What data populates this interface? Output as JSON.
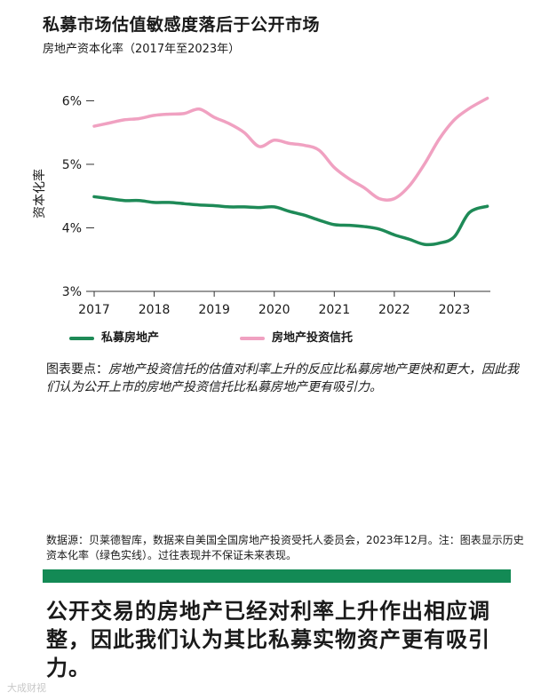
{
  "colors": {
    "private": "#1e8a57",
    "reit": "#f0a1c1",
    "axis": "#333333",
    "band": "#138a55",
    "grid": "#cccccc"
  },
  "header": {
    "title": "私募市场估值敏感度落后于公开市场",
    "subtitle": "房地产资本化率（2017年至2023年）"
  },
  "chart_data": {
    "type": "line",
    "ylabel": "资本化率",
    "xlabel": "",
    "xlim": [
      2017,
      2023.6
    ],
    "ylim": [
      3,
      6.3
    ],
    "x_ticks": [
      2017,
      2018,
      2019,
      2020,
      2021,
      2022,
      2023
    ],
    "x_tick_labels": [
      "2017",
      "2018",
      "2019",
      "2020",
      "2021",
      "2022",
      "2023"
    ],
    "y_ticks": [
      3,
      4,
      5,
      6
    ],
    "y_tick_labels": [
      "3%",
      "4%",
      "5%",
      "6%"
    ],
    "series": [
      {
        "name": "私募房地产",
        "color": "#1e8a57",
        "x": [
          2017,
          2017.25,
          2017.5,
          2017.75,
          2018,
          2018.25,
          2018.5,
          2018.75,
          2019,
          2019.25,
          2019.5,
          2019.75,
          2020,
          2020.25,
          2020.5,
          2020.75,
          2021,
          2021.25,
          2021.5,
          2021.75,
          2022,
          2022.25,
          2022.5,
          2022.75,
          2023,
          2023.25,
          2023.55
        ],
        "values": [
          4.49,
          4.46,
          4.43,
          4.43,
          4.4,
          4.4,
          4.38,
          4.36,
          4.35,
          4.33,
          4.33,
          4.32,
          4.33,
          4.26,
          4.2,
          4.12,
          4.05,
          4.04,
          4.02,
          3.98,
          3.89,
          3.82,
          3.74,
          3.76,
          3.86,
          4.24,
          4.34
        ]
      },
      {
        "name": "房地产投资信托",
        "color": "#f0a1c1",
        "x": [
          2017,
          2017.25,
          2017.5,
          2017.75,
          2018,
          2018.25,
          2018.5,
          2018.75,
          2019,
          2019.25,
          2019.5,
          2019.75,
          2020,
          2020.25,
          2020.5,
          2020.75,
          2021,
          2021.25,
          2021.5,
          2021.75,
          2022,
          2022.25,
          2022.5,
          2022.75,
          2023,
          2023.25,
          2023.55
        ],
        "values": [
          5.6,
          5.65,
          5.7,
          5.72,
          5.77,
          5.79,
          5.8,
          5.87,
          5.74,
          5.64,
          5.5,
          5.28,
          5.38,
          5.33,
          5.3,
          5.22,
          4.95,
          4.77,
          4.63,
          4.46,
          4.46,
          4.66,
          5.0,
          5.4,
          5.7,
          5.88,
          6.04
        ]
      }
    ]
  },
  "legend": {
    "private": "私募房地产",
    "reit": "房地产投资信托"
  },
  "note": {
    "lead": "图表要点：",
    "body": "房地产投资信托的估值对利率上升的反应比私募房地产更快和更大，因此我们认为公开上市的房地产投资信托比私募房地产更有吸引力。"
  },
  "source": "数据源：贝莱德智库，数据来自美国全国房地产投资受托人委员会，2023年12月。注：图表显示历史资本化率（绿色实线）。过往表现并不保证未来表现。",
  "headline": "公开交易的房地产已经对利率上升作出相应调整，因此我们认为其比私募实物资产更有吸引力。",
  "watermark": "大成财视"
}
